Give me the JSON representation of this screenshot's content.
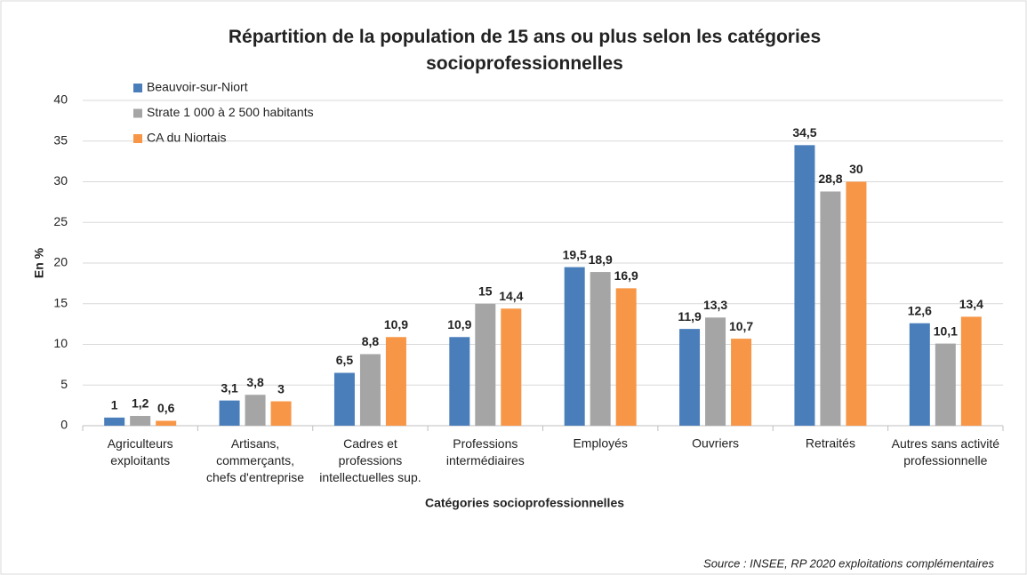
{
  "chart_data": {
    "type": "bar",
    "title": "Répartition de la population de 15 ans ou plus selon les catégories\nsocioprofessionnelles",
    "x_label": "Catégories socioprofessionnelles",
    "y_label": "En %",
    "source": "Source : INSEE, RP 2020 exploitations complémentaires",
    "categories": [
      "Agriculteurs\nexploitants",
      "Artisans,\ncommerçants,\nchefs d'entreprise",
      "Cadres et\nprofessions\nintellectuelles sup.",
      "Professions\nintermédiaires",
      "Employés",
      "Ouvriers",
      "Retraités",
      "Autres sans activité\nprofessionnelle"
    ],
    "series": [
      {
        "name": "Beauvoir-sur-Niort",
        "color": "#4a7ebb",
        "values": [
          1,
          3.1,
          6.5,
          10.9,
          19.5,
          11.9,
          34.5,
          12.6
        ],
        "value_labels": [
          "1",
          "3,1",
          "6,5",
          "10,9",
          "19,5",
          "11,9",
          "34,5",
          "12,6"
        ]
      },
      {
        "name": "Strate 1 000 à 2 500 habitants",
        "color": "#a5a5a5",
        "values": [
          1.2,
          3.8,
          8.8,
          15,
          18.9,
          13.3,
          28.8,
          10.1
        ],
        "value_labels": [
          "1,2",
          "3,8",
          "8,8",
          "15",
          "18,9",
          "13,3",
          "28,8",
          "10,1"
        ]
      },
      {
        "name": "CA du Niortais",
        "color": "#f79646",
        "values": [
          0.6,
          3,
          10.9,
          14.4,
          16.9,
          10.7,
          30,
          13.4
        ],
        "value_labels": [
          "0,6",
          "3",
          "10,9",
          "14,4",
          "16,9",
          "10,7",
          "30",
          "13,4"
        ]
      }
    ],
    "ylim": [
      0,
      40
    ],
    "yticks": [
      0,
      5,
      10,
      15,
      20,
      25,
      30,
      35,
      40
    ],
    "grid": true,
    "legend": "top-left"
  }
}
